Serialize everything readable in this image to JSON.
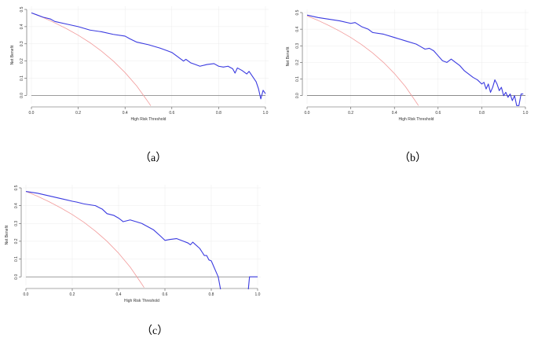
{
  "colors": {
    "model": "#3a3ae0",
    "treat_all": "#f29a9a",
    "treat_none": "#666666",
    "grid": "#ececec"
  },
  "chart_data": [
    {
      "type": "line",
      "caption": "（a）",
      "xlabel": "High Risk Threshold",
      "ylabel": "Net Benefit",
      "xlim": [
        0,
        1
      ],
      "ylim": [
        -0.03,
        0.5
      ],
      "xticks": [
        "0.0",
        "0.2",
        "0.4",
        "0.6",
        "0.8",
        "1.0"
      ],
      "yticks": [
        "0.0",
        "0.1",
        "0.2",
        "0.3",
        "0.4",
        "0.5"
      ],
      "grid": true,
      "series": [
        {
          "role": "model",
          "x": [
            0,
            0.02,
            0.05,
            0.08,
            0.1,
            0.15,
            0.2,
            0.25,
            0.3,
            0.35,
            0.4,
            0.42,
            0.45,
            0.5,
            0.55,
            0.58,
            0.6,
            0.62,
            0.65,
            0.66,
            0.68,
            0.7,
            0.72,
            0.75,
            0.78,
            0.8,
            0.82,
            0.84,
            0.86,
            0.87,
            0.88,
            0.9,
            0.92,
            0.93,
            0.94,
            0.96,
            0.97,
            0.98,
            0.99,
            1.0
          ],
          "y": [
            0.48,
            0.47,
            0.455,
            0.445,
            0.43,
            0.415,
            0.4,
            0.38,
            0.37,
            0.355,
            0.345,
            0.33,
            0.31,
            0.295,
            0.275,
            0.26,
            0.25,
            0.23,
            0.2,
            0.21,
            0.19,
            0.18,
            0.17,
            0.18,
            0.185,
            0.17,
            0.165,
            0.17,
            0.155,
            0.13,
            0.16,
            0.145,
            0.125,
            0.14,
            0.12,
            0.08,
            0.04,
            -0.02,
            0.03,
            0.01
          ]
        },
        {
          "role": "treat_all",
          "x": [
            0,
            0.05,
            0.1,
            0.15,
            0.2,
            0.25,
            0.3,
            0.35,
            0.4,
            0.45,
            0.5,
            0.51
          ],
          "y": [
            0.48,
            0.453,
            0.422,
            0.388,
            0.35,
            0.307,
            0.257,
            0.2,
            0.133,
            0.055,
            -0.04,
            -0.06
          ]
        },
        {
          "role": "treat_none",
          "x": [
            0,
            1
          ],
          "y": [
            0,
            0
          ]
        }
      ]
    },
    {
      "type": "line",
      "caption": "（b）",
      "xlabel": "High Risk Threshold",
      "ylabel": "Net Benefit",
      "xlim": [
        0,
        1
      ],
      "ylim": [
        -0.03,
        0.5
      ],
      "xticks": [
        "0.0",
        "0.2",
        "0.4",
        "0.6",
        "0.8",
        "1.0"
      ],
      "yticks": [
        "0.0",
        "0.1",
        "0.2",
        "0.3",
        "0.4",
        "0.5"
      ],
      "grid": true,
      "series": [
        {
          "role": "model",
          "x": [
            0,
            0.05,
            0.1,
            0.15,
            0.2,
            0.22,
            0.25,
            0.28,
            0.3,
            0.35,
            0.4,
            0.45,
            0.5,
            0.52,
            0.54,
            0.56,
            0.58,
            0.6,
            0.62,
            0.64,
            0.66,
            0.68,
            0.7,
            0.72,
            0.74,
            0.76,
            0.78,
            0.8,
            0.81,
            0.82,
            0.83,
            0.84,
            0.85,
            0.86,
            0.87,
            0.88,
            0.89,
            0.9,
            0.91,
            0.92,
            0.93,
            0.94,
            0.95,
            0.96,
            0.97,
            0.98,
            0.99
          ],
          "y": [
            0.485,
            0.47,
            0.46,
            0.45,
            0.435,
            0.44,
            0.415,
            0.4,
            0.38,
            0.37,
            0.35,
            0.33,
            0.31,
            0.295,
            0.28,
            0.285,
            0.27,
            0.24,
            0.21,
            0.2,
            0.22,
            0.2,
            0.18,
            0.15,
            0.13,
            0.11,
            0.095,
            0.07,
            0.08,
            0.04,
            0.07,
            0.02,
            0.05,
            0.095,
            0.07,
            0.03,
            0.05,
            0.0,
            0.02,
            -0.01,
            0.01,
            -0.03,
            0.0,
            -0.06,
            -0.06,
            0.01,
            0.01
          ]
        },
        {
          "role": "treat_all",
          "x": [
            0,
            0.05,
            0.1,
            0.15,
            0.2,
            0.25,
            0.3,
            0.35,
            0.4,
            0.45,
            0.5,
            0.51
          ],
          "y": [
            0.48,
            0.453,
            0.422,
            0.388,
            0.35,
            0.307,
            0.257,
            0.2,
            0.133,
            0.055,
            -0.04,
            -0.06
          ]
        },
        {
          "role": "treat_none",
          "x": [
            0,
            1
          ],
          "y": [
            0,
            0
          ]
        }
      ]
    },
    {
      "type": "line",
      "caption": "（c）",
      "xlabel": "High Risk Threshold",
      "ylabel": "Net Benefit",
      "xlim": [
        0,
        1
      ],
      "ylim": [
        -0.03,
        0.5
      ],
      "xticks": [
        "0.0",
        "0.2",
        "0.4",
        "0.6",
        "0.8",
        "1.0"
      ],
      "yticks": [
        "0.0",
        "0.1",
        "0.2",
        "0.3",
        "0.4",
        "0.5"
      ],
      "grid": true,
      "series": [
        {
          "role": "model",
          "x": [
            0,
            0.05,
            0.1,
            0.15,
            0.2,
            0.22,
            0.25,
            0.3,
            0.33,
            0.35,
            0.38,
            0.4,
            0.42,
            0.45,
            0.5,
            0.55,
            0.58,
            0.6,
            0.62,
            0.65,
            0.68,
            0.7,
            0.71,
            0.72,
            0.75,
            0.76,
            0.77,
            0.78,
            0.79,
            0.8,
            0.81,
            0.82,
            0.83,
            0.84
          ],
          "y": [
            0.48,
            0.47,
            0.455,
            0.44,
            0.425,
            0.42,
            0.41,
            0.4,
            0.38,
            0.355,
            0.345,
            0.33,
            0.31,
            0.32,
            0.3,
            0.265,
            0.23,
            0.205,
            0.21,
            0.215,
            0.2,
            0.19,
            0.18,
            0.195,
            0.16,
            0.14,
            0.12,
            0.12,
            0.095,
            0.09,
            0.06,
            0.03,
            0.0,
            -0.07
          ]
        },
        {
          "role": "model_tail",
          "x": [
            0.96,
            0.965,
            0.97,
            1.0
          ],
          "y": [
            -0.07,
            0.0,
            0.0,
            0.0
          ]
        },
        {
          "role": "treat_all",
          "x": [
            0,
            0.05,
            0.1,
            0.15,
            0.2,
            0.25,
            0.3,
            0.35,
            0.4,
            0.45,
            0.5,
            0.51
          ],
          "y": [
            0.48,
            0.453,
            0.422,
            0.388,
            0.35,
            0.307,
            0.257,
            0.2,
            0.133,
            0.055,
            -0.04,
            -0.06
          ]
        },
        {
          "role": "treat_none",
          "x": [
            0,
            1
          ],
          "y": [
            0,
            0
          ]
        }
      ]
    }
  ]
}
